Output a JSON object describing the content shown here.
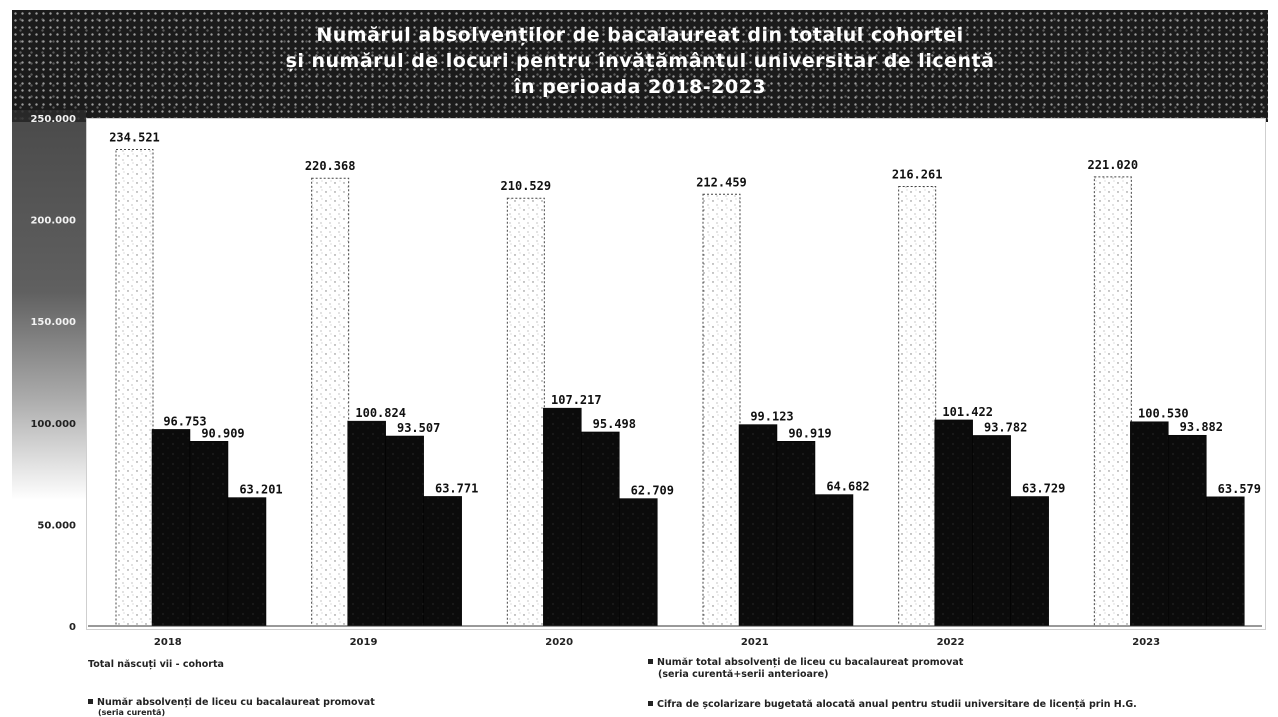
{
  "chart_data": {
    "type": "bar",
    "title_lines": [
      "Numărul absolvenților de bacalaureat din totalul cohortei",
      "și numărul de locuri pentru învățământul universitar de licență",
      "în perioada 2018-2023"
    ],
    "categories": [
      "2018",
      "2019",
      "2020",
      "2021",
      "2022",
      "2023"
    ],
    "ylim": [
      0,
      250000
    ],
    "yticks": [
      "0",
      "50.000",
      "100.000",
      "150.000",
      "200.000",
      "250.000"
    ],
    "grid": false,
    "legend_position": "bottom",
    "series": [
      {
        "name": "Total născuți vii - cohorta",
        "color": "#ffffff",
        "values": [
          234521,
          220368,
          210529,
          212459,
          216261,
          221020
        ],
        "labels": [
          "234.521",
          "220.368",
          "210.529",
          "212.459",
          "216.261",
          "221.020"
        ]
      },
      {
        "name": "Număr absolvenți de liceu cu bacalaureat promovat (seria curentă)",
        "color": "#0d0d0d",
        "values": [
          96753,
          100824,
          107217,
          99123,
          101422,
          100530
        ],
        "labels": [
          "96.753",
          "100.824",
          "107.217",
          "99.123",
          "101.422",
          "100.530"
        ]
      },
      {
        "name": "Număr total absolvenți de liceu cu bacalaureat promovat (seria curentă+serii anterioare)",
        "color": "#0d0d0d",
        "values": [
          90909,
          93507,
          95498,
          90919,
          93782,
          93882
        ],
        "labels": [
          "90.909",
          "93.507",
          "95.498",
          "90.919",
          "93.782",
          "93.882"
        ]
      },
      {
        "name": "Cifra de școlarizare bugetată alocată anual pentru studii universitare de licență prin H.G.",
        "color": "#0d0d0d",
        "values": [
          63201,
          63771,
          62709,
          64682,
          63729,
          63579
        ],
        "labels": [
          "63.201",
          "63.771",
          "62.709",
          "64.682",
          "63.729",
          "63.579"
        ]
      }
    ],
    "legend": {
      "left_col": [
        "Total născuți vii - cohorta",
        "Număr absolvenți de liceu cu bacalaureat promovat",
        "(seria curentă)"
      ],
      "right_col": [
        "Număr total absolvenți de liceu cu bacalaureat promovat",
        "(seria curentă+serii anterioare)",
        "Cifra de școlarizare bugetată alocată anual pentru studii universitare de licență prin H.G."
      ]
    }
  }
}
